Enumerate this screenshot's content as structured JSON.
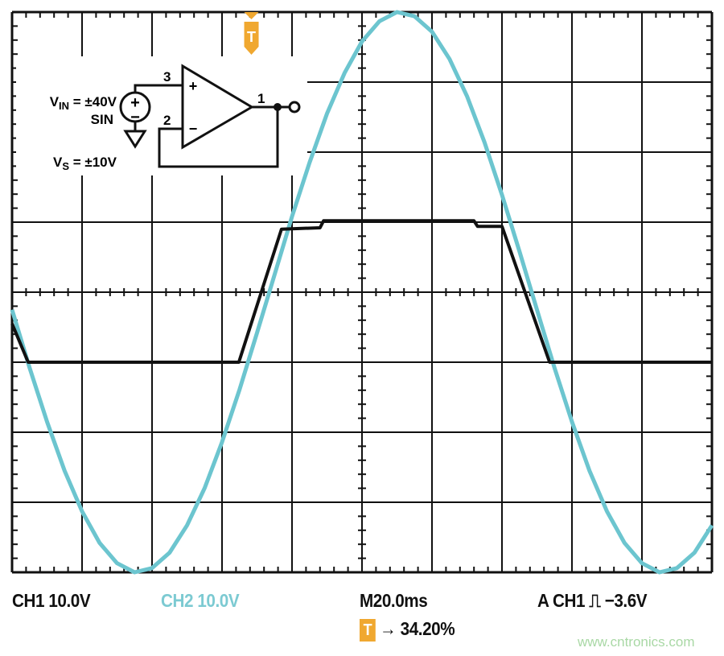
{
  "chart_data": {
    "type": "line",
    "title": "",
    "xlabel": "",
    "ylabel": "",
    "x_unit": "ms",
    "y_unit": "V",
    "xlim": [
      0,
      200
    ],
    "ylim": [
      -40,
      40
    ],
    "x_divisions": 10,
    "y_divisions": 8,
    "grid": true,
    "series": [
      {
        "name": "CH1",
        "color": "#111111",
        "points": [
          [
            0,
            -4.5
          ],
          [
            4.6,
            -10
          ],
          [
            64.8,
            -10
          ],
          [
            77,
            9
          ],
          [
            88,
            9.2
          ],
          [
            89,
            10.2
          ],
          [
            132,
            10.2
          ],
          [
            133,
            9.4
          ],
          [
            140,
            9.4
          ],
          [
            153.6,
            -10
          ],
          [
            200,
            -10
          ]
        ]
      },
      {
        "name": "CH2",
        "color": "#6cc5cf",
        "points": [
          [
            0,
            -2.5
          ],
          [
            5,
            -10.8
          ],
          [
            10,
            -18.5
          ],
          [
            15,
            -25.5
          ],
          [
            20,
            -31.3
          ],
          [
            25,
            -35.8
          ],
          [
            30,
            -38.7
          ],
          [
            35,
            -40.0
          ],
          [
            40,
            -39.4
          ],
          [
            45,
            -37.2
          ],
          [
            50,
            -33.3
          ],
          [
            55,
            -28.0
          ],
          [
            60,
            -21.4
          ],
          [
            65,
            -13.9
          ],
          [
            70,
            -5.8
          ],
          [
            75,
            2.5
          ],
          [
            80,
            10.8
          ],
          [
            85,
            18.5
          ],
          [
            90,
            25.5
          ],
          [
            95,
            31.3
          ],
          [
            100,
            35.8
          ],
          [
            105,
            38.7
          ],
          [
            110,
            40.0
          ],
          [
            115,
            39.4
          ],
          [
            120,
            37.2
          ],
          [
            125,
            33.3
          ],
          [
            130,
            28.0
          ],
          [
            135,
            21.4
          ],
          [
            140,
            13.9
          ],
          [
            145,
            5.8
          ],
          [
            150,
            -2.5
          ],
          [
            155,
            -10.8
          ],
          [
            160,
            -18.5
          ],
          [
            165,
            -25.5
          ],
          [
            170,
            -31.3
          ],
          [
            175,
            -35.8
          ],
          [
            180,
            -38.7
          ],
          [
            185,
            -40.0
          ],
          [
            190,
            -39.4
          ],
          [
            195,
            -37.2
          ],
          [
            200,
            -33.3
          ]
        ]
      }
    ],
    "trigger_position_percent": 34.2,
    "trigger_color": "#f0a830"
  },
  "circuit": {
    "vin_label": "V",
    "vin_sub": "IN",
    "vin_value": " = ±40V",
    "sin_label": "SIN",
    "vs_label": "V",
    "vs_sub": "S",
    "vs_value": " = ±10V",
    "pin3": "3",
    "pin2": "2",
    "pin1": "1",
    "plus": "+",
    "minus": "−"
  },
  "readout": {
    "ch1": "CH1  10.0V",
    "ch2": "CH2  10.0V",
    "timebase": "M20.0ms",
    "trigger": "A  CH1 ⎍ −3.6V",
    "trigger_marker": "T",
    "trigger_pos": "→ 34.20%"
  },
  "watermark": "www.cntronics.com"
}
